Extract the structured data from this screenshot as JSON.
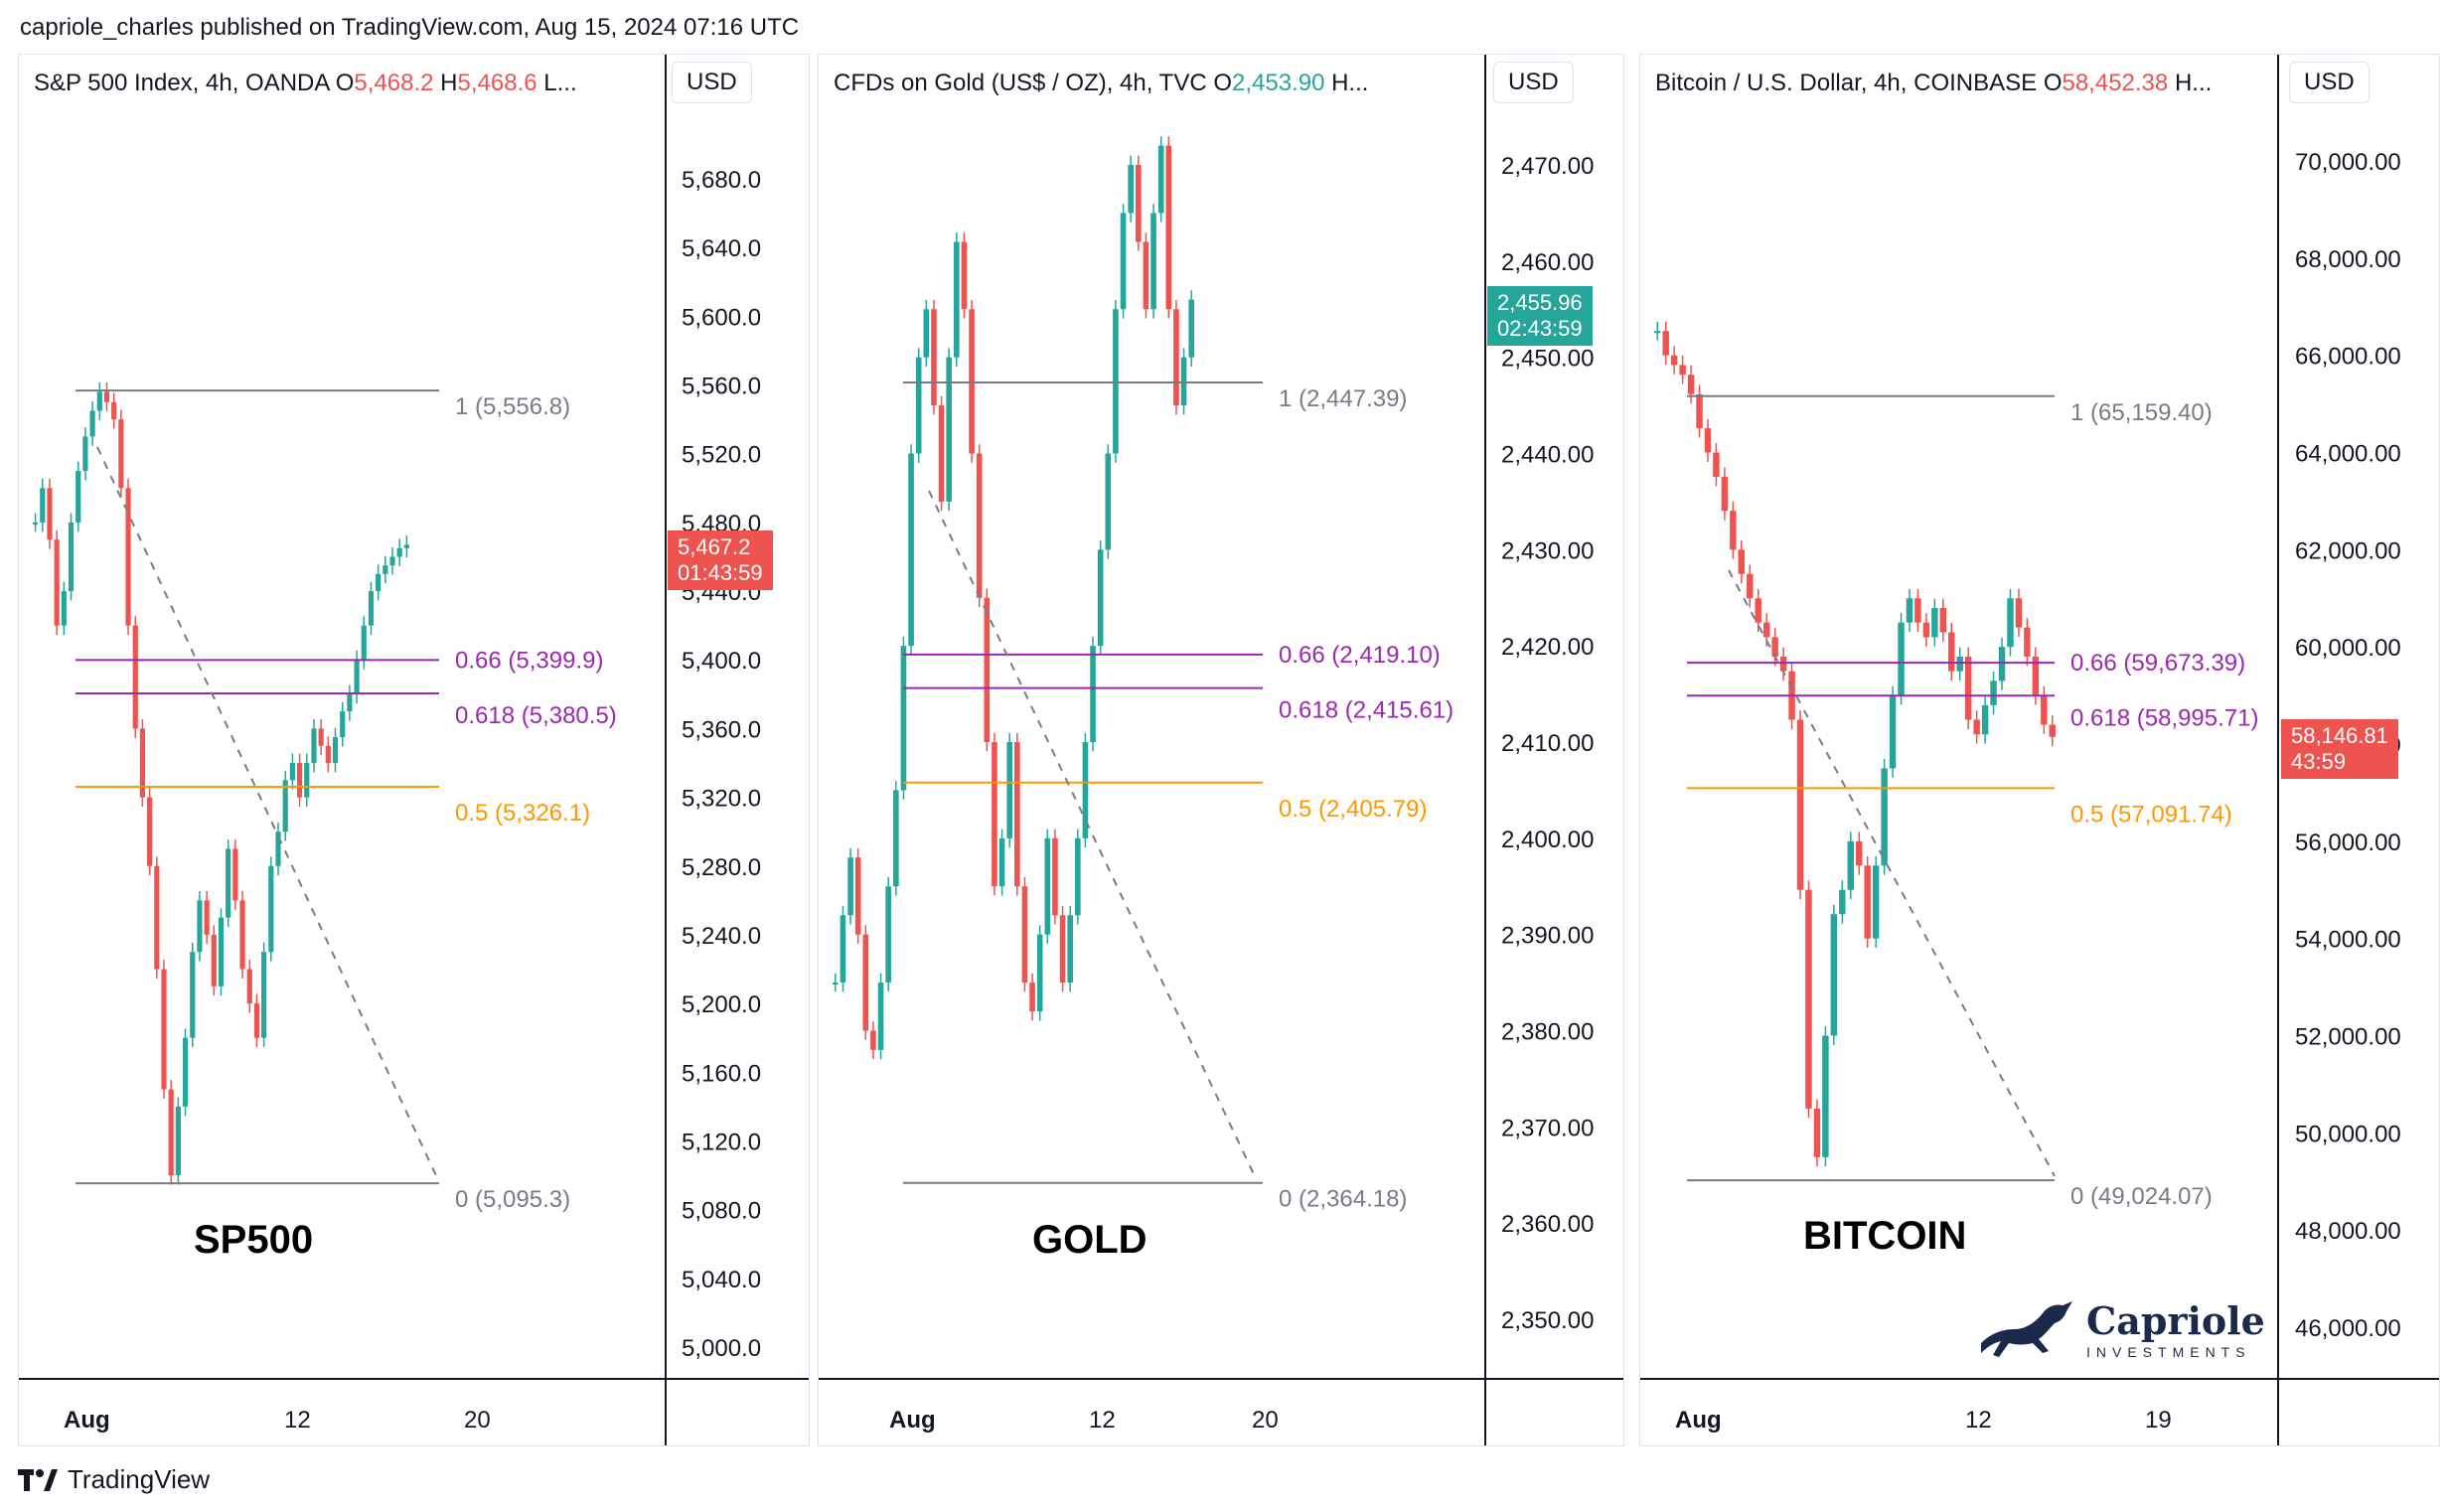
{
  "header": {
    "text": "capriole_charles published on TradingView.com, Aug 15, 2024 07:16 UTC"
  },
  "footer": {
    "brand": "TradingView"
  },
  "logo": {
    "name": "Capriole",
    "sub": "INVESTMENTS",
    "icon": "horse-icon"
  },
  "colors": {
    "up": "#26a69a",
    "down": "#ef5350",
    "fib_1": "#787b86",
    "fib_066": "#9c27b0",
    "fib_0618": "#9c27b0",
    "fib_05": "#ff9800",
    "fib_0": "#787b86"
  },
  "panels": [
    {
      "id": "sp500",
      "title_prefix": "S&P 500 Index, 4h, OANDA  ",
      "o_label": "O",
      "o_value": "5,468.2",
      "h_label": "H",
      "h_value": "5,468.6",
      "trail": "L...",
      "currency": "USD",
      "price_tag": {
        "price": "5,467.2",
        "time": "01:43:59"
      },
      "big_label": "SP500",
      "x_ticks": [
        {
          "label": "Aug",
          "bold": true
        },
        {
          "label": "12",
          "bold": false
        },
        {
          "label": "20",
          "bold": false
        }
      ]
    },
    {
      "id": "gold",
      "title_prefix": "CFDs on Gold (US$ / OZ), 4h, TVC  ",
      "o_label": "O",
      "o_value": "2,453.90",
      "h_label": "H...",
      "h_value": "",
      "trail": "",
      "currency": "USD",
      "price_tag": {
        "price": "2,455.96",
        "time": "02:43:59"
      },
      "big_label": "GOLD",
      "x_ticks": [
        {
          "label": "Aug",
          "bold": true
        },
        {
          "label": "12",
          "bold": false
        },
        {
          "label": "20",
          "bold": false
        }
      ]
    },
    {
      "id": "bitcoin",
      "title_prefix": "Bitcoin / U.S. Dollar, 4h, COINBASE  ",
      "o_label": "O",
      "o_value": "58,452.38",
      "h_label": "H...",
      "h_value": "",
      "trail": "",
      "currency": "USD",
      "price_tag": {
        "price": "58,146.81",
        "time": "43:59"
      },
      "big_label": "BITCOIN",
      "x_ticks": [
        {
          "label": "Aug",
          "bold": true
        },
        {
          "label": "12",
          "bold": false
        },
        {
          "label": "19",
          "bold": false
        }
      ]
    }
  ],
  "chart_data": [
    {
      "type": "candlestick",
      "title": "S&P 500 Index, 4h, OANDA",
      "y_ticks": [
        "5,680.0",
        "5,640.0",
        "5,600.0",
        "5,560.0",
        "5,520.0",
        "5,480.0",
        "5,440.0",
        "5,400.0",
        "5,360.0",
        "5,320.0",
        "5,280.0",
        "5,240.0",
        "5,200.0",
        "5,160.0",
        "5,120.0",
        "5,080.0",
        "5,040.0",
        "5,000.0"
      ],
      "ylim": [
        4980,
        5720
      ],
      "x_ticks": [
        "Aug",
        "12",
        "20"
      ],
      "close_path": [
        5480,
        5500,
        5470,
        5420,
        5440,
        5480,
        5510,
        5530,
        5545,
        5556,
        5550,
        5540,
        5500,
        5420,
        5360,
        5320,
        5280,
        5220,
        5150,
        5100,
        5140,
        5180,
        5230,
        5260,
        5240,
        5210,
        5250,
        5290,
        5260,
        5220,
        5200,
        5180,
        5230,
        5280,
        5300,
        5330,
        5340,
        5320,
        5340,
        5360,
        5350,
        5340,
        5355,
        5370,
        5380,
        5400,
        5420,
        5440,
        5450,
        5455,
        5460,
        5465,
        5467
      ],
      "current_price": 5467.2,
      "fib_levels": [
        {
          "ratio": "1",
          "value": 5556.8,
          "label": "1 (5,556.8)"
        },
        {
          "ratio": "0.66",
          "value": 5399.9,
          "label": "0.66 (5,399.9)"
        },
        {
          "ratio": "0.618",
          "value": 5380.5,
          "label": "0.618 (5,380.5)"
        },
        {
          "ratio": "0.5",
          "value": 5326.1,
          "label": "0.5 (5,326.1)"
        },
        {
          "ratio": "0",
          "value": 5095.3,
          "label": "0 (5,095.3)"
        }
      ]
    },
    {
      "type": "candlestick",
      "title": "CFDs on Gold (US$ / OZ), 4h, TVC",
      "y_ticks": [
        "2,470.00",
        "2,460.00",
        "2,450.00",
        "2,440.00",
        "2,430.00",
        "2,420.00",
        "2,410.00",
        "2,400.00",
        "2,390.00",
        "2,380.00",
        "2,370.00",
        "2,360.00",
        "2,350.00"
      ],
      "ylim": [
        2345,
        2474
      ],
      "x_ticks": [
        "Aug",
        "12",
        "20"
      ],
      "close_path": [
        2385,
        2392,
        2398,
        2390,
        2380,
        2378,
        2385,
        2395,
        2405,
        2420,
        2440,
        2450,
        2455,
        2445,
        2435,
        2450,
        2462,
        2455,
        2440,
        2425,
        2410,
        2395,
        2400,
        2410,
        2395,
        2385,
        2382,
        2390,
        2400,
        2392,
        2385,
        2392,
        2400,
        2410,
        2420,
        2430,
        2440,
        2455,
        2465,
        2470,
        2462,
        2455,
        2465,
        2472,
        2455,
        2445,
        2450,
        2456
      ],
      "current_price": 2455.96,
      "fib_levels": [
        {
          "ratio": "1",
          "value": 2447.39,
          "label": "1 (2,447.39)"
        },
        {
          "ratio": "0.66",
          "value": 2419.1,
          "label": "0.66 (2,419.10)"
        },
        {
          "ratio": "0.618",
          "value": 2415.61,
          "label": "0.618 (2,415.61)"
        },
        {
          "ratio": "0.5",
          "value": 2405.79,
          "label": "0.5 (2,405.79)"
        },
        {
          "ratio": "0",
          "value": 2364.18,
          "label": "0 (2,364.18)"
        }
      ]
    },
    {
      "type": "candlestick",
      "title": "Bitcoin / U.S. Dollar, 4h, COINBASE",
      "y_ticks": [
        "70,000.00",
        "68,000.00",
        "66,000.00",
        "64,000.00",
        "62,000.00",
        "60,000.00",
        "58,000.00",
        "56,000.00",
        "54,000.00",
        "52,000.00",
        "50,000.00",
        "48,000.00",
        "46,000.00"
      ],
      "ylim": [
        45200,
        71000
      ],
      "x_ticks": [
        "Aug",
        "12",
        "19"
      ],
      "close_path": [
        66500,
        66000,
        65800,
        65600,
        65200,
        64500,
        64000,
        63500,
        62800,
        62000,
        61500,
        61000,
        60500,
        60200,
        59800,
        59500,
        58500,
        55000,
        50500,
        49500,
        52000,
        54500,
        55000,
        56000,
        55500,
        54000,
        55500,
        57500,
        59000,
        60500,
        61000,
        60500,
        60200,
        60800,
        60300,
        59500,
        59800,
        58500,
        58200,
        58800,
        59300,
        60000,
        61000,
        60400,
        59800,
        59000,
        58400,
        58146
      ],
      "current_price": 58146.81,
      "fib_levels": [
        {
          "ratio": "1",
          "value": 65159.4,
          "label": "1 (65,159.40)"
        },
        {
          "ratio": "0.66",
          "value": 59673.39,
          "label": "0.66 (59,673.39)"
        },
        {
          "ratio": "0.618",
          "value": 58995.71,
          "label": "0.618 (58,995.71)"
        },
        {
          "ratio": "0.5",
          "value": 57091.74,
          "label": "0.5 (57,091.74)"
        },
        {
          "ratio": "0",
          "value": 49024.07,
          "label": "0 (49,024.07)"
        }
      ]
    }
  ]
}
